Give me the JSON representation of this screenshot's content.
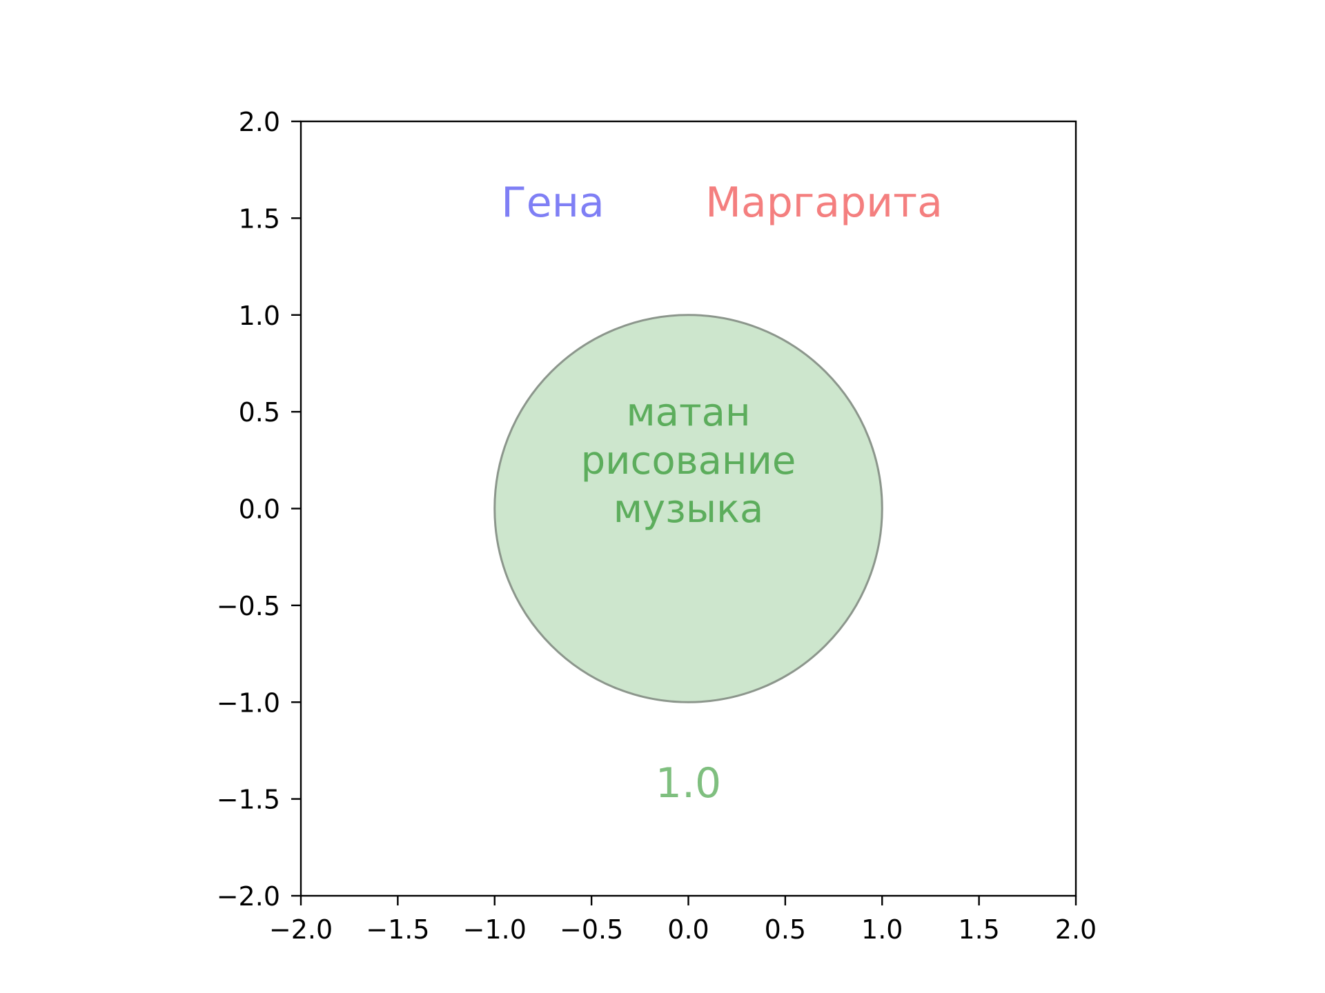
{
  "chart_data": {
    "type": "venn",
    "title": "",
    "xlabel": "",
    "ylabel": "",
    "xlim": [
      -2.0,
      2.0
    ],
    "ylim": [
      -2.0,
      2.0
    ],
    "grid": false,
    "x_ticks": [
      "−2.0",
      "−1.5",
      "−1.0",
      "−0.5",
      "0.0",
      "0.5",
      "1.0",
      "1.5",
      "2.0"
    ],
    "y_ticks": [
      "2.0",
      "1.5",
      "1.0",
      "0.5",
      "0.0",
      "−0.5",
      "−1.0",
      "−1.5",
      "−2.0"
    ],
    "x_tick_values": [
      -2.0,
      -1.5,
      -1.0,
      -0.5,
      0.0,
      0.5,
      1.0,
      1.5,
      2.0
    ],
    "y_tick_values": [
      2.0,
      1.5,
      1.0,
      0.5,
      0.0,
      -0.5,
      -1.0,
      -1.5,
      -2.0
    ],
    "circle": {
      "center": [
        0.0,
        0.0
      ],
      "radius": 1.0,
      "fill_color": "#cde6cd",
      "edge_color": "#8c968c"
    },
    "set_labels": [
      {
        "text": "Гена",
        "x": -0.7,
        "y": 1.58,
        "color": "#7f7ff5"
      },
      {
        "text": "Маргарита",
        "x": 0.7,
        "y": 1.58,
        "color": "#f47f7f"
      }
    ],
    "region_items": [
      "матан",
      "рисование",
      "музыка"
    ],
    "region_items_color": "#5cad5c",
    "region_center": [
      0.0,
      0.5
    ],
    "intersection_value": "1.0",
    "intersection_value_position": [
      0.0,
      -1.42
    ],
    "intersection_value_color": "#7fbf7f",
    "axes_color": "#000000"
  }
}
